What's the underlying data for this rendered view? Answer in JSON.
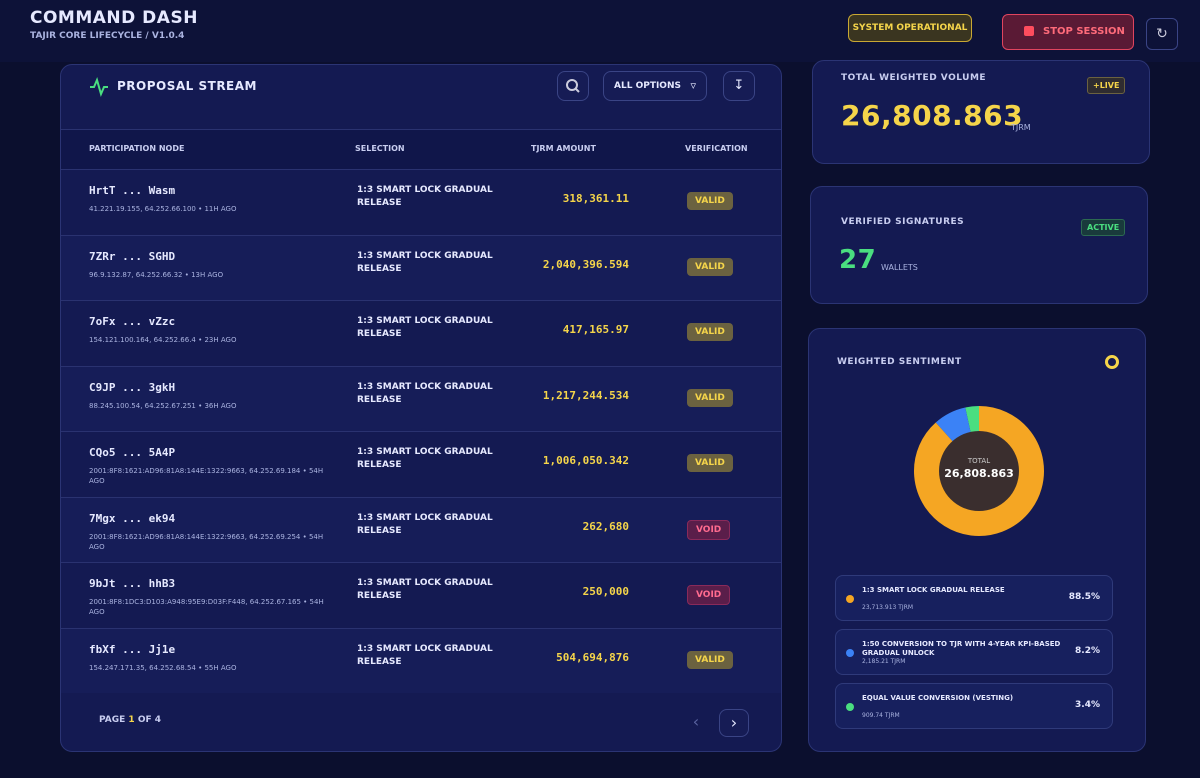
{
  "header": {
    "title": "COMMAND DASH",
    "subtitle": "TAJIR CORE LIFECYCLE / V1.0.4",
    "status": "SYSTEM OPERATIONAL",
    "stop": "STOP SESSION"
  },
  "stream": {
    "title": "PROPOSAL STREAM",
    "filter": "ALL OPTIONS",
    "columns": [
      "PARTICIPATION NODE",
      "SELECTION",
      "TJRM AMOUNT",
      "VERIFICATION"
    ],
    "rows": [
      {
        "node": "HrtT ... Wasm",
        "meta": "41.221.19.155, 64.252.66.100 • 11H AGO",
        "selection": "1:3 SMART LOCK GRADUAL RELEASE",
        "amount": "318,361.11",
        "status": "VALID"
      },
      {
        "node": "7ZRr ... SGHD",
        "meta": "96.9.132.87, 64.252.66.32 • 13H AGO",
        "selection": "1:3 SMART LOCK GRADUAL RELEASE",
        "amount": "2,040,396.594",
        "status": "VALID"
      },
      {
        "node": "7oFx ... vZzc",
        "meta": "154.121.100.164, 64.252.66.4 • 23H AGO",
        "selection": "1:3 SMART LOCK GRADUAL RELEASE",
        "amount": "417,165.97",
        "status": "VALID"
      },
      {
        "node": "C9JP ... 3gkH",
        "meta": "88.245.100.54, 64.252.67.251 • 36H AGO",
        "selection": "1:3 SMART LOCK GRADUAL RELEASE",
        "amount": "1,217,244.534",
        "status": "VALID"
      },
      {
        "node": "CQo5 ... 5A4P",
        "meta": "2001:8F8:1621:AD96:81A8:144E:1322:9663, 64.252.69.184 • 54H AGO",
        "selection": "1:3 SMART LOCK GRADUAL RELEASE",
        "amount": "1,006,050.342",
        "status": "VALID"
      },
      {
        "node": "7Mgx ... ek94",
        "meta": "2001:8F8:1621:AD96:81A8:144E:1322:9663, 64.252.69.254 • 54H AGO",
        "selection": "1:3 SMART LOCK GRADUAL RELEASE",
        "amount": "262,680",
        "status": "VOID"
      },
      {
        "node": "9bJt ... hhB3",
        "meta": "2001:8F8:1DC3:D103:A948:95E9:D03F:F448, 64.252.67.165 • 54H AGO",
        "selection": "1:3 SMART LOCK GRADUAL RELEASE",
        "amount": "250,000",
        "status": "VOID"
      },
      {
        "node": "fbXf ... Jj1e",
        "meta": "154.247.171.35, 64.252.68.54 • 55H AGO",
        "selection": "1:3 SMART LOCK GRADUAL RELEASE",
        "amount": "504,694,876",
        "status": "VALID"
      }
    ],
    "page_prefix": "PAGE",
    "page_current": "1",
    "page_suffix": "OF 4"
  },
  "volume": {
    "label": "TOTAL WEIGHTED VOLUME",
    "badge": "+LIVE",
    "value": "26,808.863",
    "unit": "TJRM"
  },
  "signatures": {
    "label": "VERIFIED SIGNATURES",
    "badge": "ACTIVE",
    "value": "27",
    "unit": "WALLETS"
  },
  "sentiment": {
    "title": "WEIGHTED SENTIMENT",
    "center_label": "TOTAL",
    "center_value": "26,808.863",
    "items": [
      {
        "name": "1:3 SMART LOCK GRADUAL RELEASE",
        "amount": "23,713.913 TJRM",
        "percent": 88.5,
        "percent_label": "88.5%",
        "color": "#f5a623"
      },
      {
        "name": "1:50 CONVERSION TO TJR WITH 4-YEAR KPI-BASED GRADUAL UNLOCK",
        "amount": "2,185.21 TJRM",
        "percent": 8.2,
        "percent_label": "8.2%",
        "color": "#3b82f6"
      },
      {
        "name": "EQUAL VALUE CONVERSION (VESTING)",
        "amount": "909.74 TJRM",
        "percent": 3.4,
        "percent_label": "3.4%",
        "color": "#4ade80"
      }
    ]
  }
}
